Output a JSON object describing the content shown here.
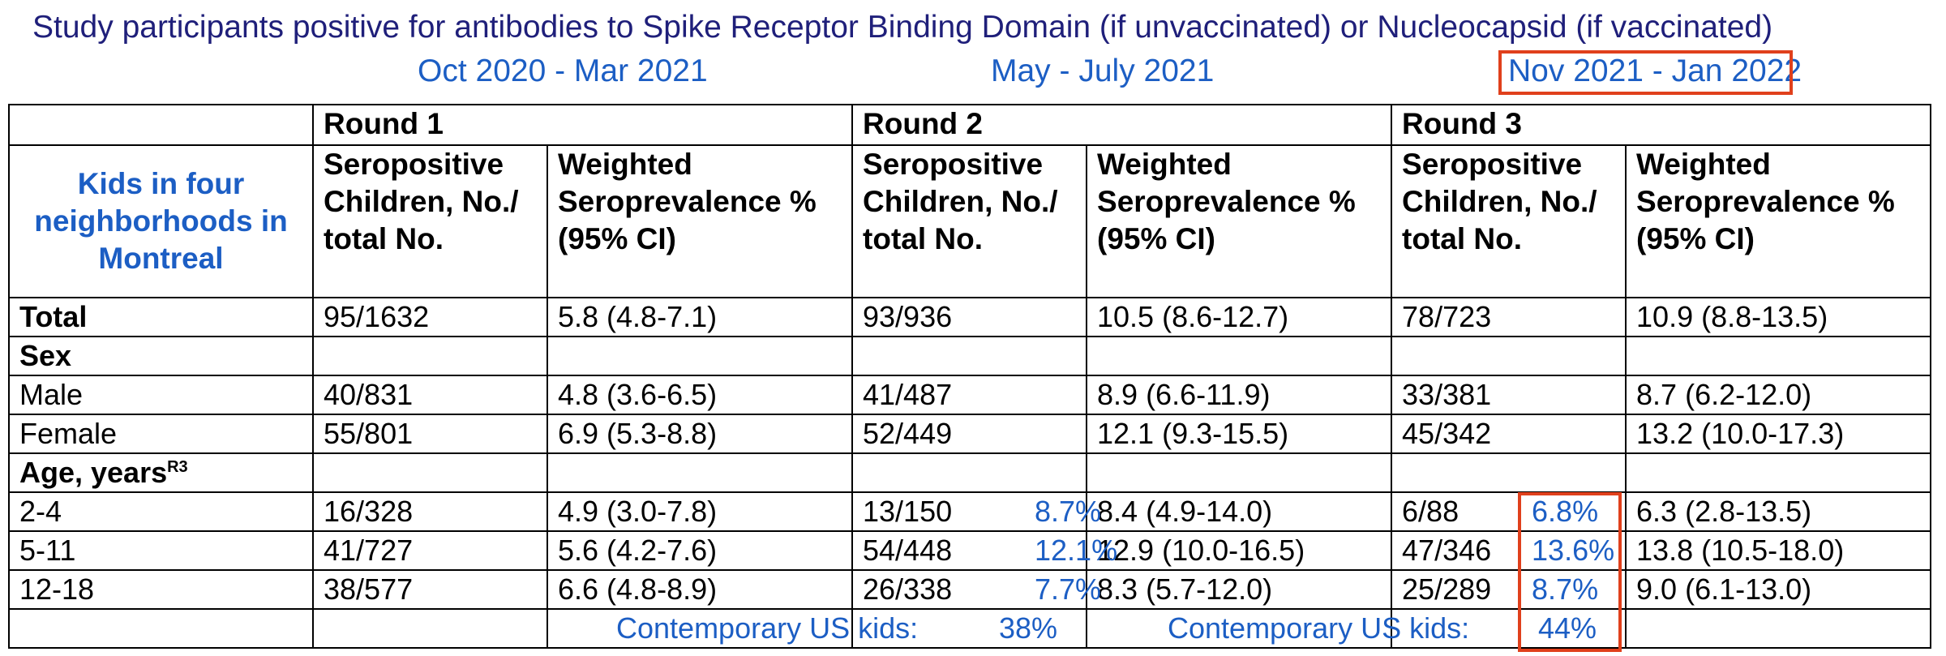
{
  "title": "Study participants positive for antibodies to Spike Receptor Binding Domain (if unvaccinated) or Nucleocapsid (if vaccinated)",
  "periods": [
    "Oct 2020 - Mar 2021",
    "May - July 2021",
    "Nov 2021 - Jan 2022"
  ],
  "highlight_color": "#e0401c",
  "accent_color": "#1c5ec4",
  "table": {
    "rounds": [
      "Round 1",
      "Round 2",
      "Round 3"
    ],
    "row_header": "Kids in four neighborhoods in Montreal",
    "col_headers": {
      "seropositive": "Seropositive Children, No./ total No.",
      "weighted": "Weighted Seroprevalence % (95% CI)"
    },
    "rows": [
      {
        "label": "Total",
        "bold": true,
        "r1": [
          "95/1632",
          "5.8 (4.8-7.1)"
        ],
        "r2": [
          "93/936",
          "10.5 (8.6-12.7)"
        ],
        "r3": [
          "78/723",
          "10.9 (8.8-13.5)"
        ]
      },
      {
        "label": "Sex",
        "bold": true
      },
      {
        "label": "Male",
        "r1": [
          "40/831",
          "4.8 (3.6-6.5)"
        ],
        "r2": [
          "41/487",
          "8.9 (6.6-11.9)"
        ],
        "r3": [
          "33/381",
          "8.7 (6.2-12.0)"
        ]
      },
      {
        "label": "Female",
        "r1": [
          "55/801",
          "6.9 (5.3-8.8)"
        ],
        "r2": [
          "52/449",
          "12.1 (9.3-15.5)"
        ],
        "r3": [
          "45/342",
          "13.2 (10.0-17.3)"
        ]
      },
      {
        "label": "Age, years",
        "sup": "R3",
        "bold": true
      },
      {
        "label": "2-4",
        "r1": [
          "16/328",
          "4.9 (3.0-7.8)"
        ],
        "r2": [
          "13/150",
          "8.4 (4.9-14.0)"
        ],
        "r2_pct": "8.7%",
        "r3": [
          "6/88",
          "6.3 (2.8-13.5)"
        ],
        "r3_pct": "6.8%"
      },
      {
        "label": "5-11",
        "r1": [
          "41/727",
          "5.6 (4.2-7.6)"
        ],
        "r2": [
          "54/448",
          "12.9 (10.0-16.5)"
        ],
        "r2_pct": "12.1%",
        "r3": [
          "47/346",
          "13.8 (10.5-18.0)"
        ],
        "r3_pct": "13.6%"
      },
      {
        "label": "12-18",
        "r1": [
          "38/577",
          "6.6 (4.8-8.9)"
        ],
        "r2": [
          "26/338",
          "8.3 (5.7-12.0)"
        ],
        "r2_pct": "7.7%",
        "r3": [
          "25/289",
          "9.0 (6.1-13.0)"
        ],
        "r3_pct": "8.7%"
      }
    ],
    "contemporary": [
      {
        "label": "Contemporary US kids:",
        "value": "38%"
      },
      {
        "label": "Contemporary US kids:",
        "value": "44%"
      }
    ]
  }
}
